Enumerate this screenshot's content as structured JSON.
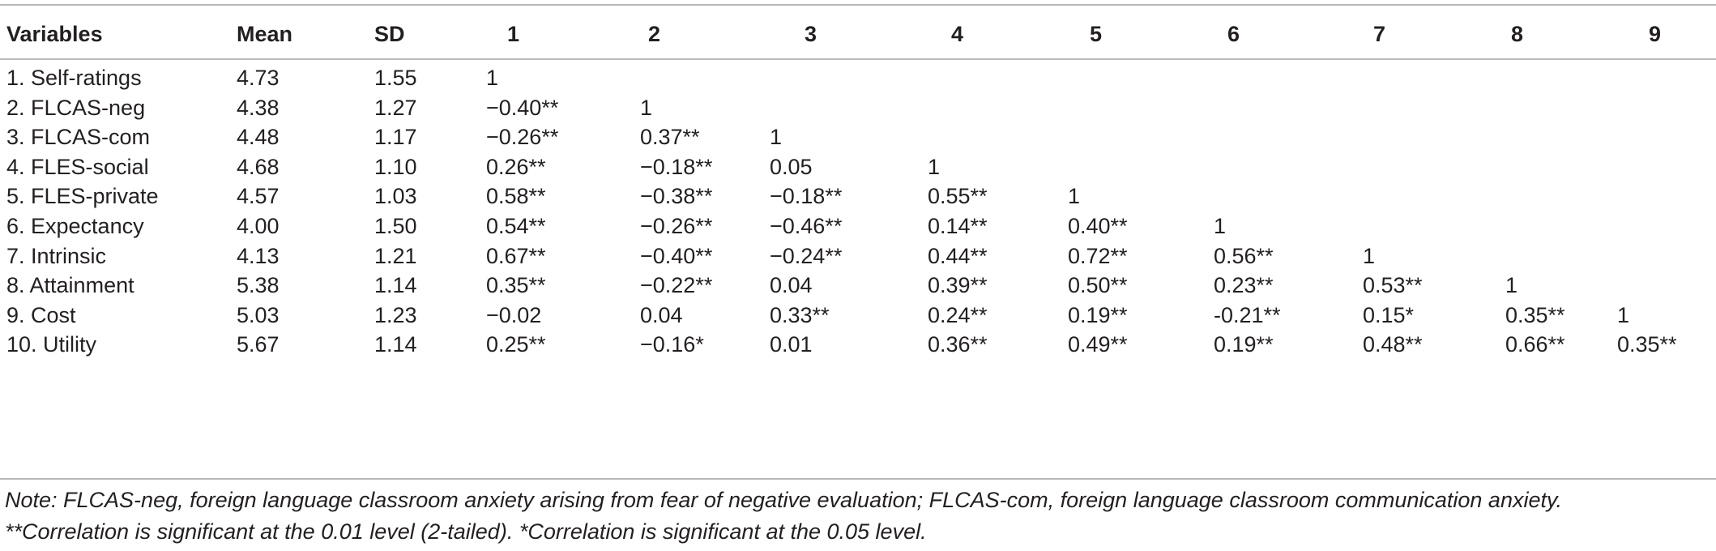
{
  "table": {
    "headers": {
      "variables": "Variables",
      "mean": "Mean",
      "sd": "SD",
      "cols": [
        "1",
        "2",
        "3",
        "4",
        "5",
        "6",
        "7",
        "8",
        "9"
      ]
    },
    "rows": [
      {
        "variable": "1. Self-ratings",
        "mean": "4.73",
        "sd": "1.55",
        "c": [
          "1",
          "",
          "",
          "",
          "",
          "",
          "",
          "",
          ""
        ]
      },
      {
        "variable": "2. FLCAS-neg",
        "mean": "4.38",
        "sd": "1.27",
        "c": [
          "−0.40**",
          "1",
          "",
          "",
          "",
          "",
          "",
          "",
          ""
        ]
      },
      {
        "variable": "3. FLCAS-com",
        "mean": "4.48",
        "sd": "1.17",
        "c": [
          "−0.26**",
          "0.37**",
          "1",
          "",
          "",
          "",
          "",
          "",
          ""
        ]
      },
      {
        "variable": "4. FLES-social",
        "mean": "4.68",
        "sd": "1.10",
        "c": [
          "0.26**",
          "−0.18**",
          "0.05",
          "1",
          "",
          "",
          "",
          "",
          ""
        ]
      },
      {
        "variable": "5. FLES-private",
        "mean": "4.57",
        "sd": "1.03",
        "c": [
          "0.58**",
          "−0.38**",
          "−0.18**",
          "0.55**",
          "1",
          "",
          "",
          "",
          ""
        ]
      },
      {
        "variable": "6. Expectancy",
        "mean": "4.00",
        "sd": "1.50",
        "c": [
          "0.54**",
          "−0.26**",
          "−0.46**",
          "0.14**",
          "0.40**",
          "1",
          "",
          "",
          ""
        ]
      },
      {
        "variable": "7. Intrinsic",
        "mean": "4.13",
        "sd": "1.21",
        "c": [
          "0.67**",
          "−0.40**",
          "−0.24**",
          "0.44**",
          "0.72**",
          "0.56**",
          "1",
          "",
          ""
        ]
      },
      {
        "variable": "8. Attainment",
        "mean": "5.38",
        "sd": "1.14",
        "c": [
          "0.35**",
          "−0.22**",
          "0.04",
          "0.39**",
          "0.50**",
          "0.23**",
          "0.53**",
          "1",
          ""
        ]
      },
      {
        "variable": "9. Cost",
        "mean": "5.03",
        "sd": "1.23",
        "c": [
          "−0.02",
          "0.04",
          "0.33**",
          "0.24**",
          "0.19**",
          "-0.21**",
          "0.15*",
          "0.35**",
          "1"
        ]
      },
      {
        "variable": "10. Utility",
        "mean": "5.67",
        "sd": "1.14",
        "c": [
          "0.25**",
          "−0.16*",
          "0.01",
          "0.36**",
          "0.49**",
          "0.19**",
          "0.48**",
          "0.66**",
          "0.35**"
        ]
      }
    ]
  },
  "note": {
    "line1": "Note: FLCAS-neg, foreign language classroom anxiety arising from fear of negative evaluation; FLCAS-com, foreign language classroom communication anxiety.",
    "line2": "**Correlation is significant at the 0.01 level (2-tailed). *Correlation is significant at the 0.05 level."
  }
}
